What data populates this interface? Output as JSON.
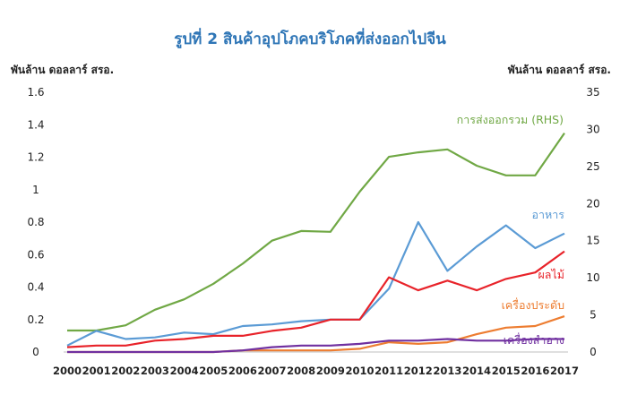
{
  "chart_data": {
    "type": "line",
    "title": "รูปที่ 2 สินค้าอุปโภคบริโภคที่ส่งออกไปจีน",
    "y_left_label": "พันล้าน ดอลลาร์ สรอ.",
    "y_right_label": "พันล้าน ดอลลาร์ สรอ.",
    "ylim_left": [
      0,
      1.6
    ],
    "ylim_right": [
      0,
      35
    ],
    "left_ticks": [
      "0",
      "0.2",
      "0.4",
      "0.6",
      "0.8",
      "1",
      "1.2",
      "1.4",
      "1.6"
    ],
    "right_ticks": [
      "0",
      "5",
      "10",
      "15",
      "20",
      "25",
      "30",
      "35"
    ],
    "categories": [
      "2000",
      "2001",
      "2002",
      "2003",
      "2004",
      "2005",
      "2006",
      "2007",
      "2008",
      "2009",
      "2010",
      "2011",
      "2012",
      "2013",
      "2014",
      "2015",
      "2016",
      "2017"
    ],
    "grid": false,
    "series": [
      {
        "name": "การส่งออกรวม (RHS)",
        "axis": "right",
        "color": "#70a845",
        "values": [
          2.9,
          2.9,
          3.6,
          5.7,
          7.1,
          9.2,
          11.9,
          15.0,
          16.3,
          16.2,
          21.6,
          26.3,
          26.9,
          27.3,
          25.1,
          23.8,
          23.8,
          29.5
        ]
      },
      {
        "name": "อาหาร",
        "axis": "left",
        "color": "#5b9bd5",
        "values": [
          0.04,
          0.13,
          0.08,
          0.09,
          0.12,
          0.11,
          0.16,
          0.17,
          0.19,
          0.2,
          0.2,
          0.39,
          0.8,
          0.5,
          0.65,
          0.78,
          0.64,
          0.73
        ]
      },
      {
        "name": "ผลไม้",
        "axis": "left",
        "color": "#e8232a",
        "values": [
          0.03,
          0.04,
          0.04,
          0.07,
          0.08,
          0.1,
          0.1,
          0.13,
          0.15,
          0.2,
          0.2,
          0.46,
          0.38,
          0.44,
          0.38,
          0.45,
          0.49,
          0.62
        ]
      },
      {
        "name": "เครื่องประดับ",
        "axis": "left",
        "color": "#ed7d31",
        "values": [
          0.0,
          0.0,
          0.0,
          0.0,
          0.0,
          0.0,
          0.01,
          0.01,
          0.01,
          0.01,
          0.02,
          0.06,
          0.05,
          0.06,
          0.11,
          0.15,
          0.16,
          0.22
        ]
      },
      {
        "name": "เครื่องสำอาง",
        "axis": "left",
        "color": "#7030a0",
        "values": [
          0.0,
          0.0,
          0.0,
          0.0,
          0.0,
          0.0,
          0.01,
          0.03,
          0.04,
          0.04,
          0.05,
          0.07,
          0.07,
          0.08,
          0.07,
          0.07,
          0.08,
          0.08
        ]
      }
    ]
  }
}
